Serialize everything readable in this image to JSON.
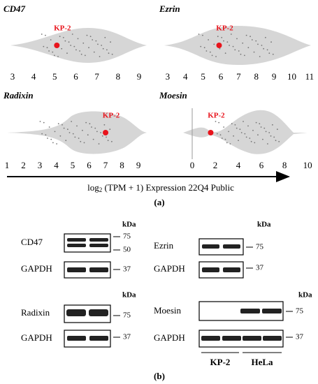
{
  "panel_a": {
    "label": "(a)",
    "axis_title": {
      "prefix": "log",
      "subscript": "2",
      "rest": " (TPM + 1) Expression 22Q4 Public"
    },
    "violins": [
      {
        "gene": "CD47",
        "xlim": [
          2.67,
          9.53
        ],
        "xticks": [
          3,
          4,
          5,
          6,
          7,
          8,
          9
        ],
        "cell_line": "KP-2",
        "value": 5.1
      },
      {
        "gene": "Ezrin",
        "xlim": [
          2.61,
          11.2
        ],
        "xticks": [
          3,
          4,
          5,
          6,
          7,
          8,
          9,
          10,
          11
        ],
        "cell_line": "KP-2",
        "value": 5.9
      },
      {
        "gene": "Radixin",
        "xlim": [
          0.79,
          9.72
        ],
        "xticks": [
          1,
          2,
          3,
          4,
          5,
          6,
          7,
          8,
          9
        ],
        "cell_line": "KP-2",
        "value": 7.0
      },
      {
        "gene": "Moesin",
        "xlim": [
          -0.79,
          10.48
        ],
        "xticks": [
          0,
          2,
          4,
          6,
          8,
          10
        ],
        "cell_line": "KP-2",
        "value": 1.6
      }
    ]
  },
  "panel_b": {
    "label": "(b)",
    "unit": "kDa",
    "blots": [
      {
        "protein": "CD47",
        "markers": [
          75,
          50
        ],
        "control": "GAPDH",
        "control_marker": 37
      },
      {
        "protein": "Ezrin",
        "markers": [
          75
        ],
        "control": "GAPDH",
        "control_marker": 37
      },
      {
        "protein": "Radixin",
        "markers": [
          75
        ],
        "control": "GAPDH",
        "control_marker": 37
      },
      {
        "protein": "Moesin",
        "markers": [
          75
        ],
        "control": "GAPDH",
        "control_marker": 37
      }
    ],
    "lanes": [
      "KP-2",
      "HeLa"
    ]
  }
}
